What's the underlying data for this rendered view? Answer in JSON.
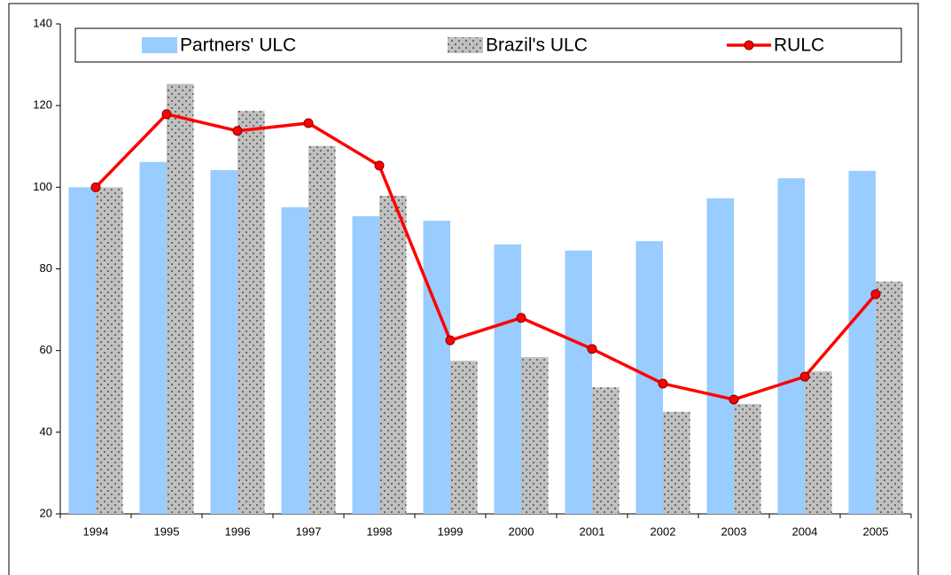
{
  "chart_data": {
    "type": "bar_line",
    "categories": [
      "1994",
      "1995",
      "1996",
      "1997",
      "1998",
      "1999",
      "2000",
      "2001",
      "2002",
      "2003",
      "2004",
      "2005"
    ],
    "series": [
      {
        "name": "Partners' ULC",
        "type": "bar",
        "color": "#99ccff",
        "values": [
          100,
          106.2,
          104.2,
          95.1,
          92.9,
          91.8,
          86,
          84.5,
          86.8,
          97.3,
          102.2,
          104
        ]
      },
      {
        "name": "Brazil's ULC",
        "type": "bar",
        "color": "#c0c0c0",
        "pattern": "dots",
        "values": [
          100,
          125.3,
          118.7,
          110.1,
          97.9,
          57.5,
          58.4,
          51,
          45,
          46.9,
          54.9,
          76.9
        ]
      },
      {
        "name": "RULC",
        "type": "line",
        "color": "#ff0000",
        "values": [
          100,
          117.9,
          113.8,
          115.7,
          105.3,
          62.5,
          68,
          60.4,
          51.9,
          48,
          53.6,
          73.8
        ]
      }
    ],
    "ylim": [
      20,
      140
    ],
    "yticks": [
      20,
      40,
      60,
      80,
      100,
      120,
      140
    ],
    "grid": false,
    "legend": "top"
  }
}
